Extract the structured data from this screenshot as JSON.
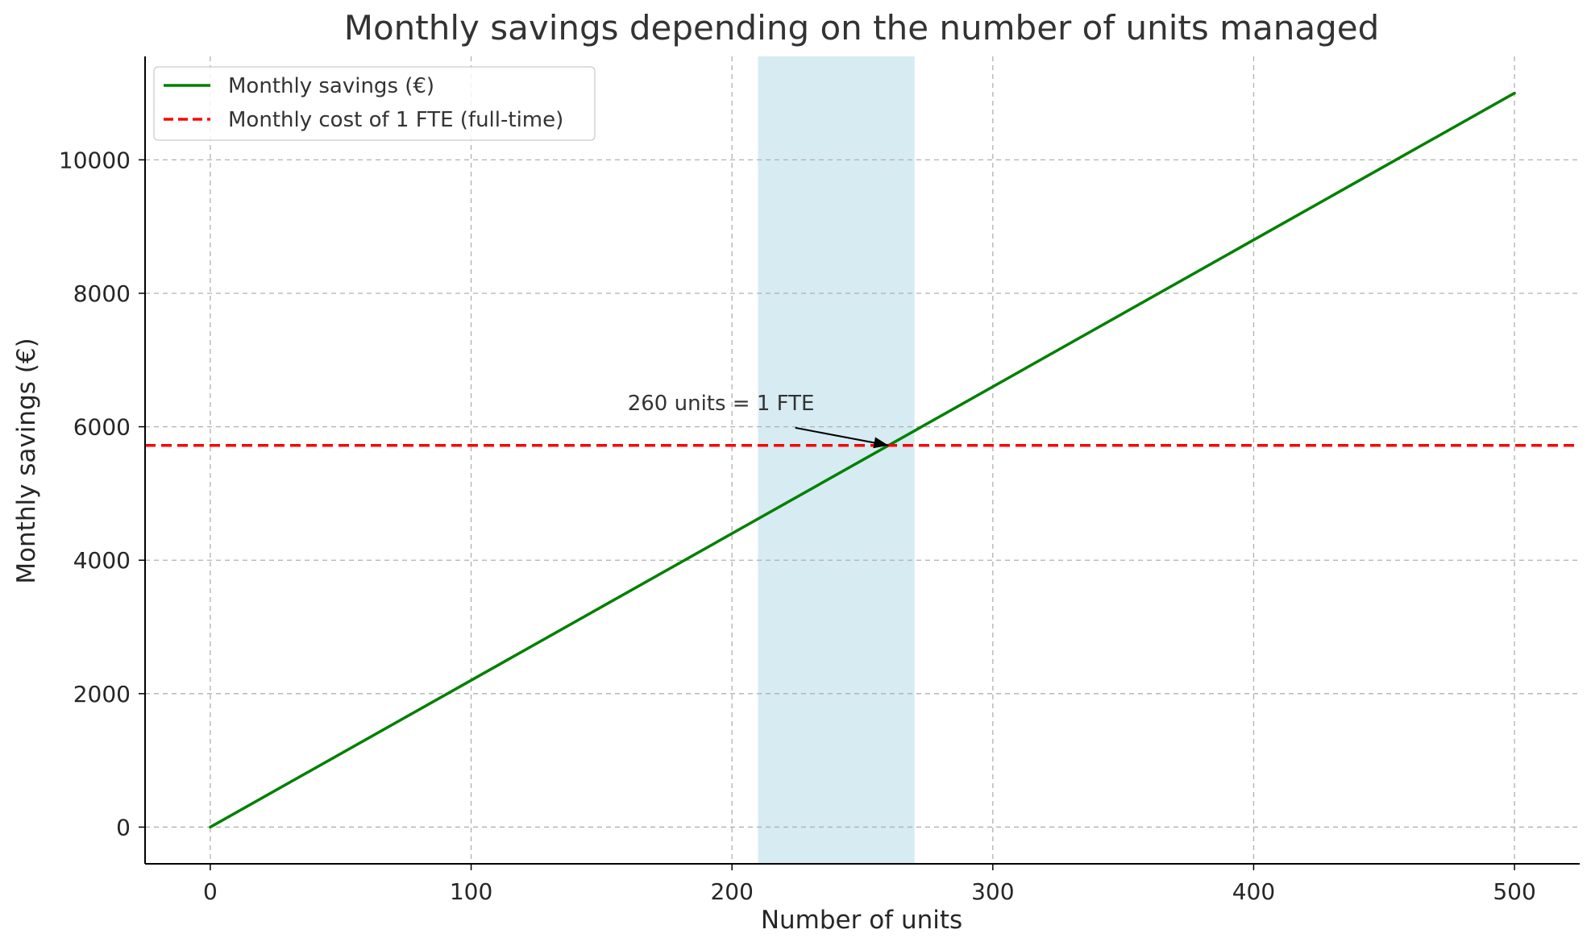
{
  "chart_data": {
    "type": "line",
    "title": "Monthly savings depending on the number of units managed",
    "xlabel": "Number of units",
    "ylabel": "Monthly savings (€)",
    "xlim": [
      -25,
      525
    ],
    "ylim": [
      -550,
      11550
    ],
    "x_ticks": [
      0,
      100,
      200,
      300,
      400,
      500
    ],
    "y_ticks": [
      0,
      2000,
      4000,
      6000,
      8000,
      10000
    ],
    "grid": true,
    "legend_position": "top-left",
    "series": [
      {
        "name": "Monthly savings (€)",
        "style": "solid",
        "color": "#008000",
        "x": [
          0,
          500
        ],
        "y": [
          0,
          11000
        ]
      },
      {
        "name": "Monthly cost of 1 FTE (full-time)",
        "style": "dashed",
        "color": "#ff0000",
        "y_constant": 5720
      }
    ],
    "shaded_region": {
      "x_start": 210,
      "x_end": 270,
      "color": "#add8e6"
    },
    "annotations": [
      {
        "text": "260 units = 1 FTE",
        "point": [
          260,
          5720
        ],
        "text_anchor_data": [
          160,
          6250
        ]
      }
    ]
  }
}
